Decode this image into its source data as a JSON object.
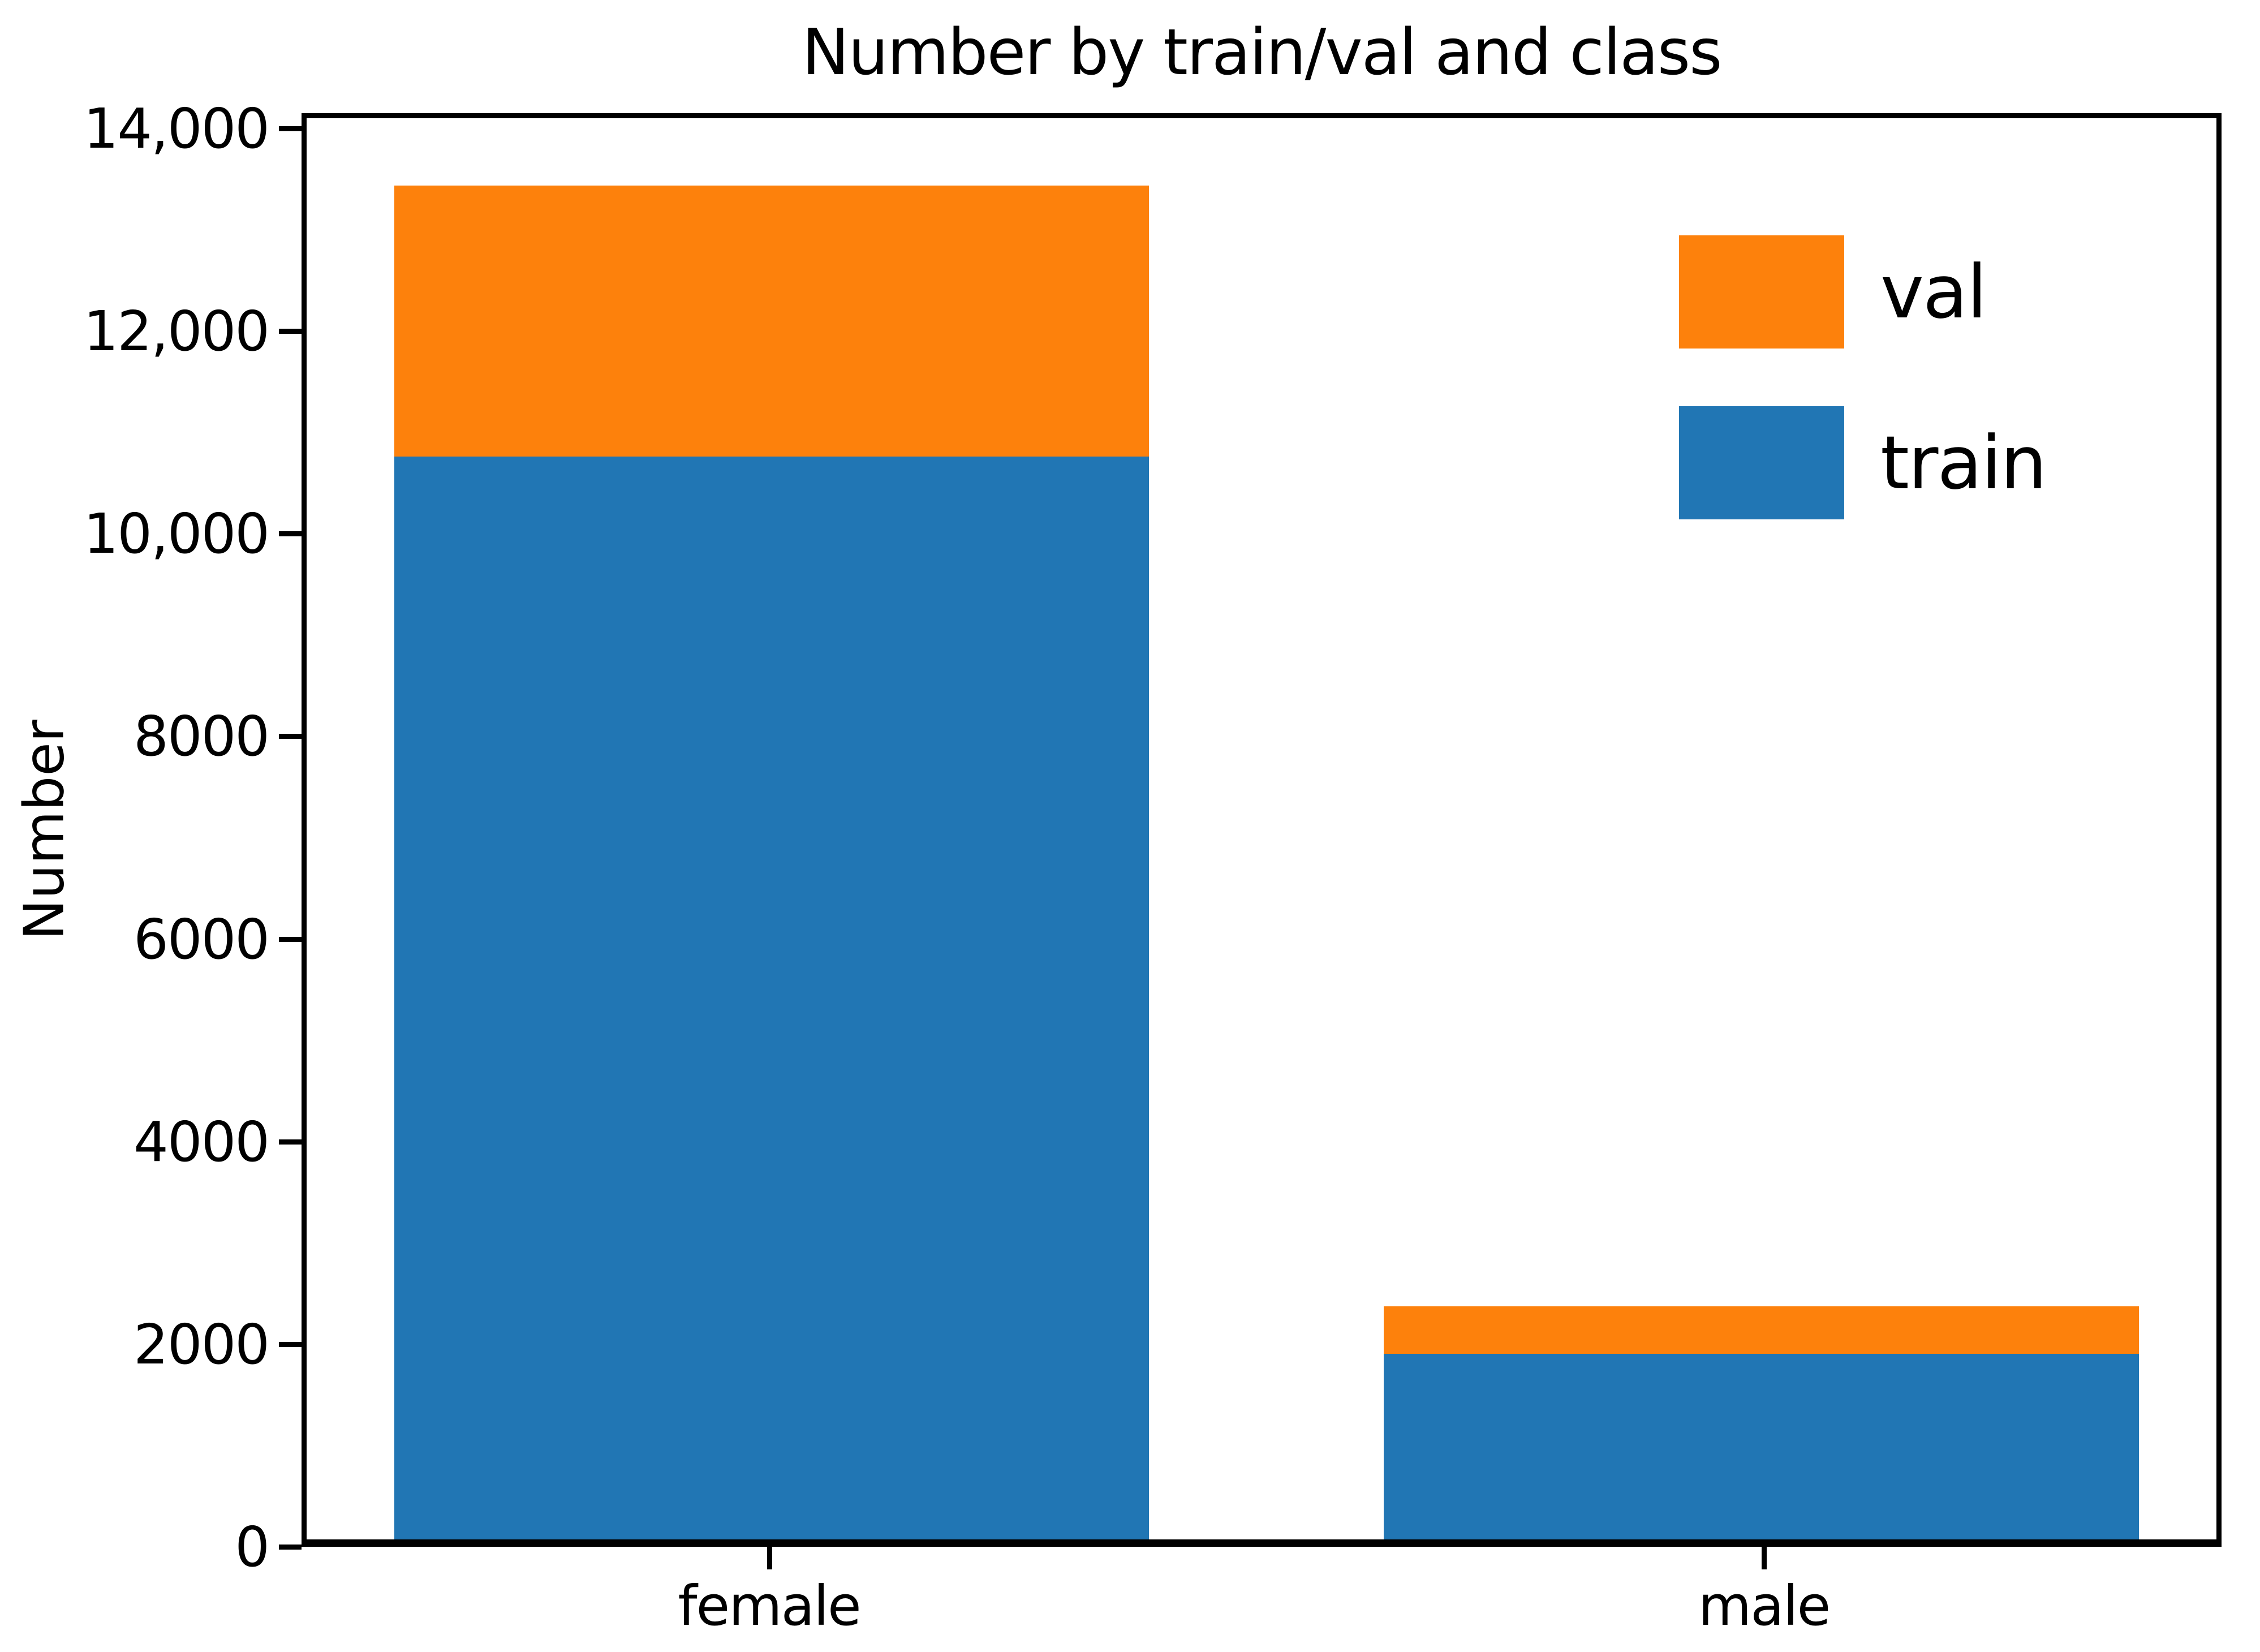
{
  "chart_data": {
    "type": "bar",
    "stacked": true,
    "title": "Number by train/val and class",
    "xlabel": "",
    "ylabel": "Number",
    "categories": [
      "female",
      "male"
    ],
    "series": [
      {
        "name": "train",
        "color": "#2176b4",
        "values": [
          10780,
          1850
        ]
      },
      {
        "name": "val",
        "color": "#fd810c",
        "values": [
          2700,
          470
        ]
      }
    ],
    "totals": [
      13480,
      2320
    ],
    "legend": {
      "position": "upper right inside",
      "order": [
        "val",
        "train"
      ],
      "frame": false
    },
    "y_ticks": [
      {
        "value": 0,
        "label": "0"
      },
      {
        "value": 2000,
        "label": "2000"
      },
      {
        "value": 4000,
        "label": "4000"
      },
      {
        "value": 6000,
        "label": "6000"
      },
      {
        "value": 8000,
        "label": "8000"
      },
      {
        "value": 10000,
        "label": "10,000"
      },
      {
        "value": 12000,
        "label": "12,000"
      },
      {
        "value": 14000,
        "label": "14,000"
      }
    ],
    "ylim": [
      0,
      14151
    ],
    "xlim": [
      -0.47,
      1.46
    ],
    "bar_width": 0.763,
    "grid": false,
    "background_color": "#ffffff",
    "axis_color": "#000000",
    "text_color": "#000000"
  }
}
